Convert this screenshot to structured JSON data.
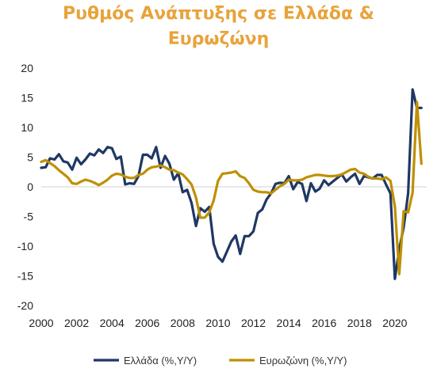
{
  "chart_data": {
    "type": "line",
    "title_line1": "Ρυθμός Ανάπτυξης σε Ελλάδα &",
    "title_line2": "Ευρωζώνη",
    "xlabel": "",
    "ylabel": "",
    "ylim": [
      -20,
      20
    ],
    "xlim": [
      2000,
      2021.8
    ],
    "y_ticks": [
      20,
      15,
      10,
      5,
      0,
      -5,
      -10,
      -15,
      -20
    ],
    "x_ticks": [
      2000,
      2002,
      2004,
      2006,
      2008,
      2010,
      2012,
      2014,
      2016,
      2018,
      2020
    ],
    "grid": false,
    "legend_position": "bottom",
    "colors": {
      "greece": "#1f3864",
      "eurozone": "#bf9000",
      "title": "#e8a33a"
    },
    "series": [
      {
        "name": "Ελλάδα (%,Y/Y)",
        "x": [
          2000,
          2000.25,
          2000.5,
          2000.75,
          2001,
          2001.25,
          2001.5,
          2001.75,
          2002,
          2002.25,
          2002.5,
          2002.75,
          2003,
          2003.25,
          2003.5,
          2003.75,
          2004,
          2004.25,
          2004.5,
          2004.75,
          2005,
          2005.25,
          2005.5,
          2005.75,
          2006,
          2006.25,
          2006.5,
          2006.75,
          2007,
          2007.25,
          2007.5,
          2007.75,
          2008,
          2008.25,
          2008.5,
          2008.75,
          2009,
          2009.25,
          2009.5,
          2009.75,
          2010,
          2010.25,
          2010.5,
          2010.75,
          2011,
          2011.25,
          2011.5,
          2011.75,
          2012,
          2012.25,
          2012.5,
          2012.75,
          2013,
          2013.25,
          2013.5,
          2013.75,
          2014,
          2014.25,
          2014.5,
          2014.75,
          2015,
          2015.25,
          2015.5,
          2015.75,
          2016,
          2016.25,
          2016.5,
          2016.75,
          2017,
          2017.25,
          2017.5,
          2017.75,
          2018,
          2018.25,
          2018.5,
          2018.75,
          2019,
          2019.25,
          2019.5,
          2019.75,
          2020,
          2020.25,
          2020.5,
          2020.75,
          2021,
          2021.25,
          2021.5
        ],
        "values": [
          3.2,
          3.3,
          4.8,
          4.6,
          5.5,
          4.3,
          4.1,
          2.9,
          4.9,
          3.8,
          4.6,
          5.6,
          5.3,
          6.3,
          5.7,
          6.7,
          6.5,
          4.7,
          5.1,
          0.4,
          0.6,
          0.5,
          1.8,
          5.4,
          5.4,
          4.8,
          6.7,
          3.2,
          5.2,
          3.9,
          1.2,
          2.3,
          -0.9,
          -0.5,
          -2.7,
          -6.6,
          -3.6,
          -4.2,
          -3.4,
          -9.6,
          -11.8,
          -12.6,
          -10.9,
          -9.2,
          -8.2,
          -11.3,
          -8.3,
          -8.3,
          -7.5,
          -4.4,
          -3.8,
          -2.1,
          -1.1,
          0.5,
          0.7,
          0.6,
          1.8,
          -0.4,
          0.8,
          0.5,
          -2.4,
          0.6,
          -0.8,
          -0.3,
          1.1,
          0.3,
          0.9,
          1.5,
          2.1,
          0.9,
          1.6,
          2.2,
          0.5,
          1.8,
          1.6,
          1.4,
          2.0,
          2.0,
          0.4,
          -1.1,
          -15.5,
          -10.5,
          -6.8,
          -1.1,
          16.4,
          13.3,
          13.3
        ]
      },
      {
        "name": "Ευρωζώνη (%,Y/Y)",
        "x": [
          2000,
          2000.25,
          2000.5,
          2000.75,
          2001,
          2001.25,
          2001.5,
          2001.75,
          2002,
          2002.25,
          2002.5,
          2002.75,
          2003,
          2003.25,
          2003.5,
          2003.75,
          2004,
          2004.25,
          2004.5,
          2004.75,
          2005,
          2005.25,
          2005.5,
          2005.75,
          2006,
          2006.25,
          2006.5,
          2006.75,
          2007,
          2007.25,
          2007.5,
          2007.75,
          2008,
          2008.25,
          2008.5,
          2008.75,
          2009,
          2009.25,
          2009.5,
          2009.75,
          2010,
          2010.25,
          2010.5,
          2010.75,
          2011,
          2011.25,
          2011.5,
          2011.75,
          2012,
          2012.25,
          2012.5,
          2012.75,
          2013,
          2013.25,
          2013.5,
          2013.75,
          2014,
          2014.25,
          2014.5,
          2014.75,
          2015,
          2015.25,
          2015.5,
          2015.75,
          2016,
          2016.25,
          2016.5,
          2016.75,
          2017,
          2017.25,
          2017.5,
          2017.75,
          2018,
          2018.25,
          2018.5,
          2018.75,
          2019,
          2019.25,
          2019.5,
          2019.75,
          2020,
          2020.25,
          2020.5,
          2020.75,
          2021,
          2021.25,
          2021.5
        ],
        "values": [
          4.2,
          4.5,
          4.0,
          3.5,
          2.8,
          2.2,
          1.6,
          0.6,
          0.5,
          0.9,
          1.2,
          1.0,
          0.7,
          0.3,
          0.7,
          1.2,
          1.9,
          2.2,
          2.1,
          1.7,
          1.5,
          1.5,
          2.0,
          2.2,
          2.9,
          3.3,
          3.4,
          3.6,
          3.3,
          2.9,
          2.8,
          2.4,
          2.1,
          1.3,
          0.4,
          -1.8,
          -5.2,
          -5.2,
          -4.3,
          -2.3,
          1.0,
          2.2,
          2.3,
          2.4,
          2.6,
          1.8,
          1.5,
          0.6,
          -0.5,
          -0.8,
          -0.9,
          -0.9,
          -1.1,
          -0.5,
          0.1,
          0.5,
          1.2,
          1.1,
          1.1,
          1.2,
          1.6,
          1.8,
          2.0,
          2.0,
          1.9,
          1.8,
          1.8,
          1.9,
          2.1,
          2.5,
          2.9,
          3.0,
          2.4,
          2.2,
          1.7,
          1.4,
          1.4,
          1.3,
          1.6,
          1.0,
          -3.3,
          -14.7,
          -4.1,
          -4.3,
          -1.0,
          14.3,
          3.9
        ]
      }
    ]
  }
}
